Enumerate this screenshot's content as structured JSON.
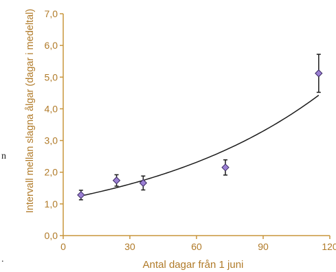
{
  "colors": {
    "axis": "#c8963c",
    "text": "#b07a28",
    "marker_fill": "#9b7fd4",
    "marker_stroke": "#3a2a60",
    "trend": "#1a1a1a",
    "error": "#1a1a1a"
  },
  "page_fragments": {
    "left_text": "n",
    "bottom_left": "."
  },
  "chart_data": {
    "type": "scatter",
    "title": "",
    "xlabel": "Antal dagar från 1 juni",
    "ylabel": "Intervall mellan slagna ålgar (dagar i medeltal)",
    "xlim": [
      0,
      120
    ],
    "ylim": [
      0,
      7
    ],
    "x_ticks": [
      "0",
      "30",
      "60",
      "90",
      "120"
    ],
    "y_ticks": [
      "0,0",
      "1,0",
      "2,0",
      "3,0",
      "4,0",
      "5,0",
      "6,0",
      "7,0"
    ],
    "grid": false,
    "series": [
      {
        "x": [
          8,
          24,
          36,
          73,
          115
        ],
        "y": [
          1.28,
          1.74,
          1.66,
          2.15,
          5.12
        ],
        "error": [
          0.15,
          0.18,
          0.22,
          0.24,
          0.6
        ]
      }
    ],
    "trendline": {
      "type": "exponential",
      "a": 1.14,
      "b": 0.0118,
      "x_range": [
        8,
        115
      ]
    }
  }
}
